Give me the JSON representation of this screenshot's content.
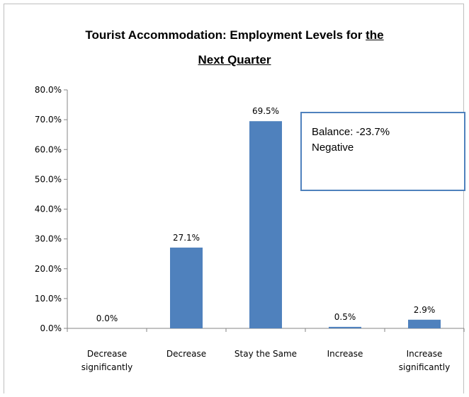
{
  "chart_data": {
    "type": "bar",
    "title_line1_prefix": "Tourist Accommodation: Employment Levels for ",
    "title_line1_underlined": "the",
    "title_line2_underlined": "Next Quarter",
    "categories": [
      [
        "Decrease",
        "significantly"
      ],
      [
        "Decrease"
      ],
      [
        "Stay the Same"
      ],
      [
        "Increase"
      ],
      [
        "Increase",
        "significantly"
      ]
    ],
    "values": [
      0.0,
      27.1,
      69.5,
      0.5,
      2.9
    ],
    "data_labels": [
      "0.0%",
      "27.1%",
      "69.5%",
      "0.5%",
      "2.9%"
    ],
    "ylim": [
      0,
      80
    ],
    "yticks": [
      0,
      10,
      20,
      30,
      40,
      50,
      60,
      70,
      80
    ],
    "ytick_labels": [
      "0.0%",
      "10.0%",
      "20.0%",
      "30.0%",
      "40.0%",
      "50.0%",
      "60.0%",
      "70.0%",
      "80.0%"
    ],
    "bar_color": "#4f81bd",
    "annotation": {
      "line1": "Balance: -23.7%",
      "line2": "Negative"
    }
  }
}
